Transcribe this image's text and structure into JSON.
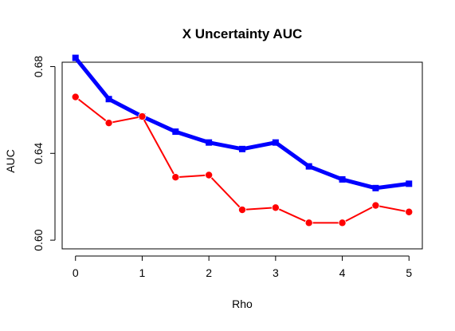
{
  "chart_data": {
    "type": "line",
    "title": "X Uncertainty AUC",
    "xlabel": "Rho",
    "ylabel": "AUC",
    "x": [
      0,
      0.5,
      1,
      1.5,
      2,
      2.5,
      3,
      3.5,
      4,
      4.5,
      5
    ],
    "xlim": [
      -0.2,
      5.2
    ],
    "ylim": [
      0.596,
      0.682
    ],
    "xticks": [
      0,
      1,
      2,
      3,
      4,
      5
    ],
    "xtick_labels": [
      "0",
      "1",
      "2",
      "3",
      "4",
      "5"
    ],
    "yticks": [
      0.6,
      0.64,
      0.68
    ],
    "ytick_labels": [
      "0.60",
      "0.64",
      "0.68"
    ],
    "grid": false,
    "legend": "none",
    "series": [
      {
        "values": [
          0.684,
          0.665,
          0.657,
          0.65,
          0.645,
          0.642,
          0.645,
          0.634,
          0.628,
          0.624,
          0.626
        ],
        "color": "#0000ff",
        "marker": "square"
      },
      {
        "values": [
          0.666,
          0.654,
          0.657,
          0.629,
          0.63,
          0.614,
          0.615,
          0.608,
          0.608,
          0.616,
          0.613
        ],
        "color": "#ff0000",
        "marker": "circle"
      }
    ]
  }
}
